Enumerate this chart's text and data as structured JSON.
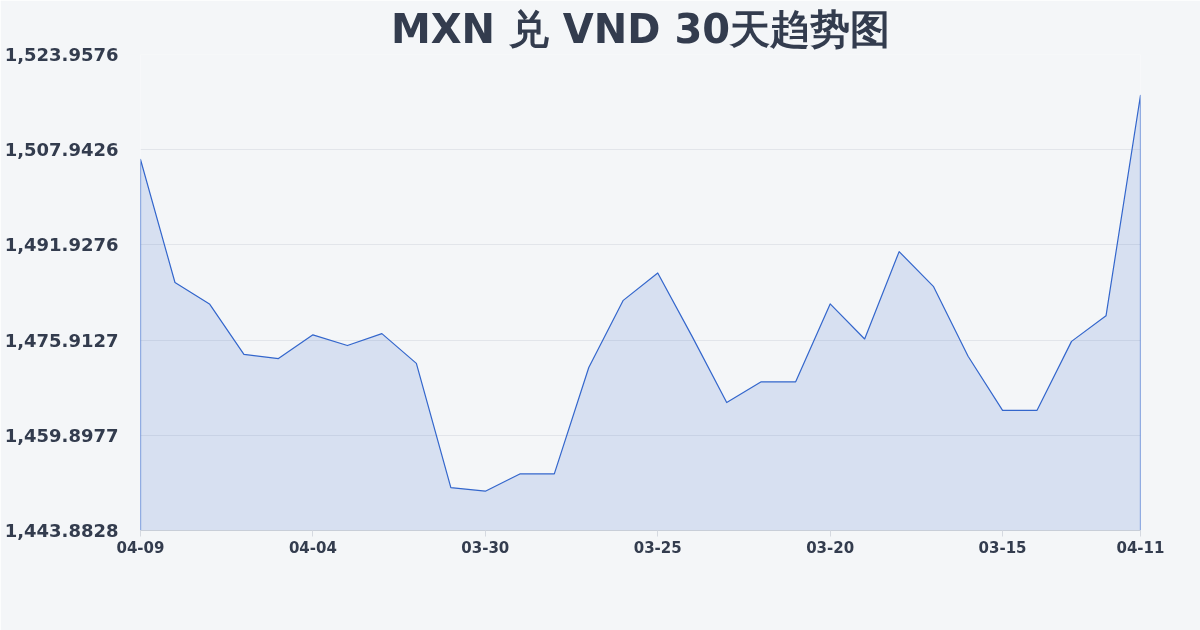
{
  "chart_data": {
    "type": "area",
    "title": "MXN 兑 VND 30天趋势图",
    "categories": [
      "04-09",
      null,
      null,
      null,
      null,
      "04-04",
      null,
      null,
      null,
      null,
      "03-30",
      null,
      null,
      null,
      null,
      "03-25",
      null,
      null,
      null,
      null,
      "03-20",
      null,
      null,
      null,
      null,
      "03-15",
      null,
      null,
      null,
      "04-11"
    ],
    "values": [
      1506.3,
      1485.6,
      1482.0,
      1473.5,
      1472.8,
      1476.8,
      1475.0,
      1477.0,
      1472.0,
      1451.1,
      1450.5,
      1453.4,
      1453.4,
      1471.3,
      1482.6,
      1487.2,
      1476.5,
      1465.4,
      1468.9,
      1468.9,
      1482.0,
      1476.1,
      1490.8,
      1484.9,
      1473.2,
      1464.1,
      1464.1,
      1475.7,
      1480.0,
      1517.1
    ],
    "color": "#3366cc",
    "ylim": [
      1443.8828,
      1523.9576
    ],
    "yticks": [
      {
        "value": 1443.8828,
        "label": "1,443.8828"
      },
      {
        "value": 1459.8977,
        "label": "1,459.8977"
      },
      {
        "value": 1475.9127,
        "label": "1,475.9127"
      },
      {
        "value": 1491.9276,
        "label": "1,491.9276"
      },
      {
        "value": 1507.9426,
        "label": "1,507.9426"
      },
      {
        "value": 1523.9576,
        "label": "1,523.9576"
      }
    ],
    "grid": "y"
  }
}
